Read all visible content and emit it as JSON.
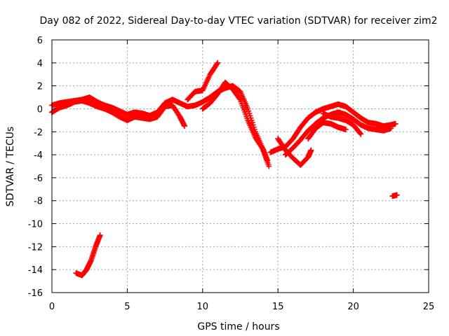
{
  "chart_data": {
    "type": "scatter",
    "title": "Day 082 of 2022, Sidereal Day-to-day VTEC variation (SDTVAR) for receiver zim2",
    "xlabel": "GPS time / hours",
    "ylabel": "SDTVAR / TECUs",
    "xlim": [
      0,
      25
    ],
    "ylim": [
      -16,
      6
    ],
    "x_ticks": [
      0,
      5,
      10,
      15,
      20,
      25
    ],
    "y_ticks": [
      -16,
      -14,
      -12,
      -10,
      -8,
      -6,
      -4,
      -2,
      0,
      2,
      4,
      6
    ],
    "grid": true,
    "legend": "none",
    "series": [
      {
        "name": "SDTVAR",
        "color": "#ff0000",
        "marker": "plus",
        "tracks": [
          [
            [
              0.0,
              0.3
            ],
            [
              0.5,
              0.5
            ],
            [
              1.0,
              0.6
            ],
            [
              1.5,
              0.7
            ],
            [
              2.0,
              0.8
            ],
            [
              2.5,
              1.0
            ],
            [
              3.0,
              0.6
            ],
            [
              3.5,
              0.3
            ],
            [
              4.0,
              0.1
            ],
            [
              4.5,
              -0.2
            ],
            [
              5.0,
              -0.5
            ],
            [
              5.5,
              -0.3
            ],
            [
              6.0,
              -0.4
            ],
            [
              6.5,
              -0.6
            ],
            [
              7.0,
              -0.3
            ],
            [
              7.5,
              0.5
            ],
            [
              8.0,
              0.8
            ],
            [
              8.5,
              0.5
            ],
            [
              9.0,
              0.2
            ],
            [
              9.5,
              0.3
            ],
            [
              10.0,
              0.6
            ],
            [
              10.5,
              1.0
            ],
            [
              11.0,
              1.5
            ],
            [
              11.5,
              1.8
            ],
            [
              12.0,
              2.0
            ],
            [
              12.5,
              1.5
            ],
            [
              13.0,
              0.0
            ],
            [
              13.5,
              -2.0
            ],
            [
              14.0,
              -3.5
            ],
            [
              14.4,
              -5.0
            ]
          ],
          [
            [
              0.0,
              -0.3
            ],
            [
              0.5,
              0.1
            ],
            [
              1.0,
              0.3
            ],
            [
              1.5,
              0.6
            ],
            [
              2.0,
              0.7
            ],
            [
              2.5,
              0.5
            ],
            [
              3.0,
              0.2
            ],
            [
              3.5,
              0.0
            ],
            [
              4.0,
              -0.3
            ],
            [
              4.5,
              -0.7
            ],
            [
              5.0,
              -1.0
            ],
            [
              5.5,
              -0.7
            ],
            [
              6.0,
              -0.8
            ],
            [
              6.5,
              -0.9
            ],
            [
              7.0,
              -0.7
            ],
            [
              7.5,
              0.2
            ],
            [
              8.0,
              0.3
            ],
            [
              8.5,
              -0.7
            ],
            [
              8.8,
              -1.5
            ]
          ],
          [
            [
              9.0,
              0.8
            ],
            [
              9.5,
              1.5
            ],
            [
              10.0,
              1.6
            ],
            [
              10.5,
              3.0
            ],
            [
              11.0,
              4.0
            ]
          ],
          [
            [
              10.0,
              0.0
            ],
            [
              10.5,
              0.5
            ],
            [
              11.0,
              1.3
            ],
            [
              11.5,
              2.3
            ],
            [
              12.0,
              1.7
            ],
            [
              12.5,
              0.8
            ],
            [
              13.0,
              -1.0
            ],
            [
              13.5,
              -2.5
            ],
            [
              14.0,
              -3.5
            ],
            [
              14.3,
              -4.5
            ]
          ],
          [
            [
              15.0,
              -2.6
            ],
            [
              15.5,
              -3.6
            ],
            [
              16.0,
              -4.3
            ],
            [
              16.5,
              -4.9
            ],
            [
              17.0,
              -4.2
            ],
            [
              17.2,
              -3.6
            ]
          ],
          [
            [
              14.5,
              -3.8
            ],
            [
              15.0,
              -3.5
            ],
            [
              15.5,
              -3.3
            ],
            [
              16.0,
              -2.6
            ],
            [
              16.5,
              -1.6
            ],
            [
              17.0,
              -0.8
            ],
            [
              17.5,
              -0.3
            ],
            [
              18.0,
              0.0
            ],
            [
              18.5,
              0.2
            ],
            [
              19.0,
              0.4
            ],
            [
              19.5,
              0.2
            ],
            [
              20.0,
              -0.3
            ],
            [
              20.5,
              -0.8
            ],
            [
              21.0,
              -1.2
            ],
            [
              21.5,
              -1.3
            ],
            [
              22.0,
              -1.5
            ],
            [
              22.5,
              -1.4
            ],
            [
              22.8,
              -1.3
            ]
          ],
          [
            [
              15.5,
              -4.0
            ],
            [
              16.0,
              -3.4
            ],
            [
              16.5,
              -2.7
            ],
            [
              17.0,
              -1.9
            ],
            [
              17.5,
              -1.3
            ],
            [
              18.0,
              -0.8
            ],
            [
              18.5,
              -0.5
            ],
            [
              19.0,
              -0.3
            ],
            [
              19.5,
              -0.5
            ],
            [
              20.0,
              -0.9
            ],
            [
              20.5,
              -1.4
            ],
            [
              21.0,
              -1.7
            ],
            [
              21.5,
              -1.8
            ],
            [
              22.0,
              -1.9
            ],
            [
              22.5,
              -1.7
            ]
          ],
          [
            [
              17.0,
              -2.6
            ],
            [
              17.5,
              -1.7
            ],
            [
              18.0,
              -1.2
            ],
            [
              18.5,
              -1.3
            ],
            [
              19.0,
              -1.6
            ],
            [
              19.5,
              -1.8
            ]
          ],
          [
            [
              18.0,
              -0.4
            ],
            [
              18.5,
              -0.7
            ],
            [
              19.0,
              -0.8
            ],
            [
              19.5,
              -1.0
            ],
            [
              20.0,
              -1.4
            ],
            [
              20.5,
              -2.2
            ]
          ],
          [
            [
              1.6,
              -14.3
            ],
            [
              2.0,
              -14.5
            ],
            [
              2.3,
              -14.0
            ],
            [
              2.6,
              -13.2
            ],
            [
              2.9,
              -12.0
            ],
            [
              3.2,
              -11.0
            ]
          ],
          [
            [
              22.6,
              -7.6
            ],
            [
              22.9,
              -7.5
            ]
          ]
        ]
      }
    ]
  }
}
